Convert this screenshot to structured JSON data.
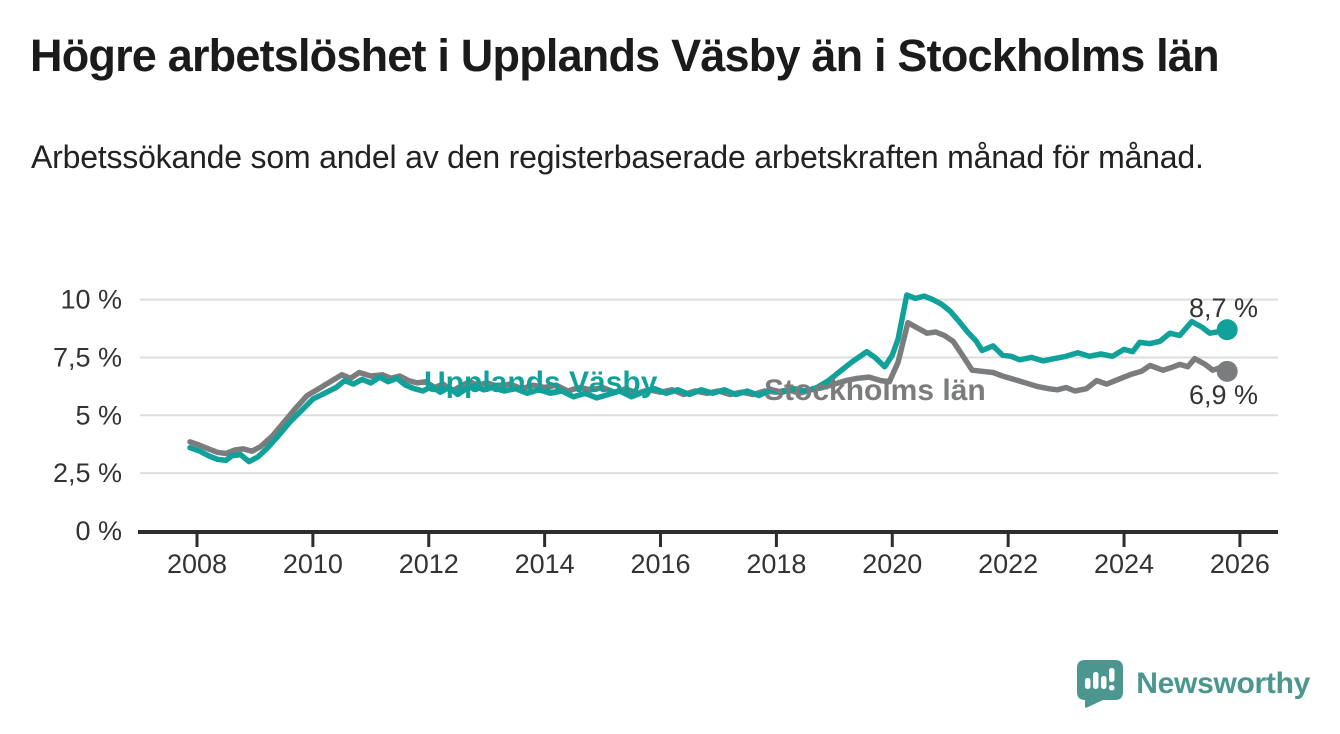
{
  "header": {
    "title": "Högre arbetslöshet i Upplands Väsby än i Stockholms län",
    "subtitle": "Arbetssökande som andel av den registerbaserade arbetskraften månad för månad."
  },
  "chart_data": {
    "type": "line",
    "title": "Högre arbetslöshet i Upplands Väsby än i Stockholms län",
    "xlabel": "",
    "ylabel": "Arbetssökande som andel av den registerbaserade arbetskraften",
    "unit": "%",
    "grid": "horizontal",
    "legend": "inline-labels-on-lines",
    "x_axis": {
      "ticks": [
        2008,
        2010,
        2012,
        2014,
        2016,
        2018,
        2020,
        2022,
        2024,
        2026
      ],
      "tick_labels": [
        "2008",
        "2010",
        "2012",
        "2014",
        "2016",
        "2018",
        "2020",
        "2022",
        "2024",
        "2026"
      ],
      "range": [
        2007.0,
        2026.7
      ]
    },
    "y_axis": {
      "tick_values": [
        0,
        2.5,
        5,
        7.5,
        10
      ],
      "tick_labels": [
        "0 %",
        "2,5 %",
        "5 %",
        "7,5 %",
        "10 %"
      ],
      "range": [
        0,
        10.6
      ]
    },
    "series": [
      {
        "name": "Upplands Väsby",
        "slug": "upplands-vasby",
        "color": "#10a29a",
        "end_label": "8,7 %",
        "end_value": 8.7,
        "points": [
          [
            2007.88,
            3.6
          ],
          [
            2008.05,
            3.45
          ],
          [
            2008.2,
            3.25
          ],
          [
            2008.35,
            3.1
          ],
          [
            2008.5,
            3.05
          ],
          [
            2008.6,
            3.25
          ],
          [
            2008.75,
            3.3
          ],
          [
            2008.9,
            3.0
          ],
          [
            2009.05,
            3.2
          ],
          [
            2009.2,
            3.55
          ],
          [
            2009.4,
            4.1
          ],
          [
            2009.6,
            4.7
          ],
          [
            2009.8,
            5.2
          ],
          [
            2010.0,
            5.7
          ],
          [
            2010.2,
            5.95
          ],
          [
            2010.4,
            6.2
          ],
          [
            2010.55,
            6.5
          ],
          [
            2010.7,
            6.35
          ],
          [
            2010.85,
            6.55
          ],
          [
            2011.0,
            6.4
          ],
          [
            2011.15,
            6.65
          ],
          [
            2011.3,
            6.45
          ],
          [
            2011.45,
            6.6
          ],
          [
            2011.6,
            6.3
          ],
          [
            2011.75,
            6.15
          ],
          [
            2011.9,
            6.05
          ],
          [
            2012.05,
            6.25
          ],
          [
            2012.2,
            6.0
          ],
          [
            2012.35,
            6.2
          ],
          [
            2012.5,
            5.9
          ],
          [
            2012.65,
            6.15
          ],
          [
            2012.8,
            6.25
          ],
          [
            2012.95,
            6.1
          ],
          [
            2013.1,
            6.2
          ],
          [
            2013.3,
            6.05
          ],
          [
            2013.5,
            6.15
          ],
          [
            2013.7,
            5.95
          ],
          [
            2013.9,
            6.1
          ],
          [
            2014.1,
            5.95
          ],
          [
            2014.3,
            6.05
          ],
          [
            2014.5,
            5.8
          ],
          [
            2014.7,
            5.95
          ],
          [
            2014.9,
            5.75
          ],
          [
            2015.1,
            5.9
          ],
          [
            2015.3,
            6.05
          ],
          [
            2015.5,
            5.8
          ],
          [
            2015.7,
            6.0
          ],
          [
            2015.9,
            6.15
          ],
          [
            2016.1,
            5.95
          ],
          [
            2016.3,
            6.1
          ],
          [
            2016.5,
            5.9
          ],
          [
            2016.7,
            6.1
          ],
          [
            2016.9,
            5.95
          ],
          [
            2017.1,
            6.1
          ],
          [
            2017.3,
            5.9
          ],
          [
            2017.5,
            6.05
          ],
          [
            2017.7,
            5.85
          ],
          [
            2017.9,
            6.1
          ],
          [
            2018.1,
            6.0
          ],
          [
            2018.3,
            6.15
          ],
          [
            2018.5,
            6.05
          ],
          [
            2018.7,
            6.2
          ],
          [
            2018.9,
            6.5
          ],
          [
            2019.1,
            6.9
          ],
          [
            2019.3,
            7.3
          ],
          [
            2019.56,
            7.75
          ],
          [
            2019.7,
            7.5
          ],
          [
            2019.87,
            7.1
          ],
          [
            2020.0,
            7.6
          ],
          [
            2020.1,
            8.3
          ],
          [
            2020.25,
            10.2
          ],
          [
            2020.4,
            10.05
          ],
          [
            2020.55,
            10.15
          ],
          [
            2020.7,
            10.0
          ],
          [
            2020.85,
            9.8
          ],
          [
            2021.0,
            9.5
          ],
          [
            2021.17,
            9.0
          ],
          [
            2021.3,
            8.6
          ],
          [
            2021.45,
            8.2
          ],
          [
            2021.55,
            7.8
          ],
          [
            2021.74,
            8.0
          ],
          [
            2021.9,
            7.6
          ],
          [
            2022.05,
            7.55
          ],
          [
            2022.2,
            7.4
          ],
          [
            2022.4,
            7.5
          ],
          [
            2022.6,
            7.35
          ],
          [
            2022.8,
            7.45
          ],
          [
            2023.0,
            7.55
          ],
          [
            2023.2,
            7.7
          ],
          [
            2023.4,
            7.55
          ],
          [
            2023.6,
            7.65
          ],
          [
            2023.8,
            7.55
          ],
          [
            2024.0,
            7.85
          ],
          [
            2024.15,
            7.75
          ],
          [
            2024.27,
            8.15
          ],
          [
            2024.45,
            8.1
          ],
          [
            2024.62,
            8.2
          ],
          [
            2024.79,
            8.55
          ],
          [
            2024.96,
            8.45
          ],
          [
            2025.17,
            9.05
          ],
          [
            2025.35,
            8.8
          ],
          [
            2025.48,
            8.55
          ],
          [
            2025.6,
            8.6
          ],
          [
            2025.78,
            8.7
          ]
        ]
      },
      {
        "name": "Stockholms län",
        "slug": "stockholms-lan",
        "color": "#7b7c7e",
        "end_label": "6,9 %",
        "end_value": 6.9,
        "points": [
          [
            2007.88,
            3.85
          ],
          [
            2008.05,
            3.7
          ],
          [
            2008.2,
            3.55
          ],
          [
            2008.35,
            3.4
          ],
          [
            2008.5,
            3.35
          ],
          [
            2008.65,
            3.5
          ],
          [
            2008.8,
            3.55
          ],
          [
            2008.95,
            3.45
          ],
          [
            2009.1,
            3.65
          ],
          [
            2009.3,
            4.1
          ],
          [
            2009.5,
            4.7
          ],
          [
            2009.7,
            5.3
          ],
          [
            2009.9,
            5.85
          ],
          [
            2010.1,
            6.15
          ],
          [
            2010.3,
            6.45
          ],
          [
            2010.5,
            6.75
          ],
          [
            2010.65,
            6.6
          ],
          [
            2010.8,
            6.85
          ],
          [
            2011.0,
            6.7
          ],
          [
            2011.2,
            6.75
          ],
          [
            2011.35,
            6.6
          ],
          [
            2011.5,
            6.7
          ],
          [
            2011.65,
            6.5
          ],
          [
            2011.8,
            6.4
          ],
          [
            2011.95,
            6.45
          ],
          [
            2012.1,
            6.2
          ],
          [
            2012.25,
            6.35
          ],
          [
            2012.4,
            6.05
          ],
          [
            2012.55,
            6.25
          ],
          [
            2012.7,
            6.45
          ],
          [
            2012.85,
            6.3
          ],
          [
            2013.0,
            6.4
          ],
          [
            2013.2,
            6.25
          ],
          [
            2013.4,
            6.35
          ],
          [
            2013.6,
            6.15
          ],
          [
            2013.8,
            6.3
          ],
          [
            2014.0,
            6.2
          ],
          [
            2014.2,
            6.3
          ],
          [
            2014.4,
            6.05
          ],
          [
            2014.6,
            6.2
          ],
          [
            2014.8,
            6.1
          ],
          [
            2015.0,
            6.2
          ],
          [
            2015.2,
            6.0
          ],
          [
            2015.4,
            6.15
          ],
          [
            2015.6,
            5.95
          ],
          [
            2015.8,
            6.1
          ],
          [
            2016.0,
            6.0
          ],
          [
            2016.2,
            6.1
          ],
          [
            2016.4,
            5.9
          ],
          [
            2016.6,
            6.05
          ],
          [
            2016.8,
            5.95
          ],
          [
            2017.0,
            6.05
          ],
          [
            2017.2,
            5.9
          ],
          [
            2017.4,
            6.0
          ],
          [
            2017.6,
            5.9
          ],
          [
            2017.8,
            6.05
          ],
          [
            2018.0,
            6.0
          ],
          [
            2018.2,
            6.1
          ],
          [
            2018.4,
            5.95
          ],
          [
            2018.6,
            6.1
          ],
          [
            2018.8,
            6.2
          ],
          [
            2019.0,
            6.35
          ],
          [
            2019.2,
            6.5
          ],
          [
            2019.4,
            6.6
          ],
          [
            2019.6,
            6.65
          ],
          [
            2019.8,
            6.5
          ],
          [
            2019.95,
            6.45
          ],
          [
            2020.1,
            7.3
          ],
          [
            2020.27,
            9.0
          ],
          [
            2020.45,
            8.75
          ],
          [
            2020.6,
            8.55
          ],
          [
            2020.75,
            8.6
          ],
          [
            2020.9,
            8.45
          ],
          [
            2021.05,
            8.2
          ],
          [
            2021.17,
            7.75
          ],
          [
            2021.38,
            6.95
          ],
          [
            2021.55,
            6.9
          ],
          [
            2021.74,
            6.85
          ],
          [
            2021.9,
            6.7
          ],
          [
            2022.1,
            6.55
          ],
          [
            2022.3,
            6.4
          ],
          [
            2022.5,
            6.25
          ],
          [
            2022.7,
            6.15
          ],
          [
            2022.85,
            6.1
          ],
          [
            2023.0,
            6.2
          ],
          [
            2023.15,
            6.05
          ],
          [
            2023.35,
            6.15
          ],
          [
            2023.53,
            6.5
          ],
          [
            2023.7,
            6.35
          ],
          [
            2023.9,
            6.55
          ],
          [
            2024.1,
            6.75
          ],
          [
            2024.3,
            6.9
          ],
          [
            2024.45,
            7.15
          ],
          [
            2024.67,
            6.95
          ],
          [
            2024.8,
            7.05
          ],
          [
            2024.96,
            7.2
          ],
          [
            2025.1,
            7.1
          ],
          [
            2025.22,
            7.45
          ],
          [
            2025.4,
            7.2
          ],
          [
            2025.53,
            6.95
          ],
          [
            2025.65,
            7.05
          ],
          [
            2025.78,
            6.9
          ]
        ]
      }
    ]
  },
  "footer": {
    "brand": "Newsworthy"
  },
  "colors": {
    "accent_teal": "#10a29a",
    "neutral_gray": "#7b7c7e",
    "axis_text": "#333333",
    "axis_line": "#2d2d2d",
    "gridline": "#dddddd",
    "logo_teal": "#4b968f"
  }
}
